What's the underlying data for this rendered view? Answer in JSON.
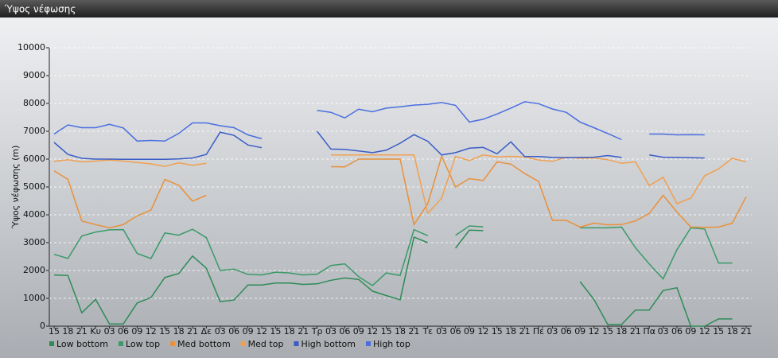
{
  "window_title": "Ύψος νέφωσης",
  "chart_data": {
    "type": "line",
    "y_label": "Ύψος νέφωσης (m)",
    "categories": [
      "15",
      "18",
      "21",
      "Κυ",
      "03",
      "06",
      "09",
      "12",
      "15",
      "18",
      "21",
      "Δε",
      "03",
      "06",
      "09",
      "12",
      "15",
      "18",
      "21",
      "Τρ",
      "03",
      "06",
      "09",
      "12",
      "15",
      "18",
      "21",
      "Τε",
      "03",
      "06",
      "09",
      "12",
      "15",
      "18",
      "21",
      "Πέ",
      "03",
      "06",
      "09",
      "12",
      "15",
      "18",
      "21",
      "Πα",
      "03",
      "06",
      "09",
      "12",
      "15",
      "18",
      "21"
    ],
    "ylim": [
      0,
      10000
    ],
    "yticks": [
      0,
      1000,
      2000,
      3000,
      4000,
      5000,
      6000,
      7000,
      8000,
      9000,
      10000
    ],
    "grid": true,
    "series": [
      {
        "name": "Low bottom",
        "color": "#2e8b57",
        "values": [
          1840,
          1820,
          480,
          960,
          80,
          80,
          830,
          1030,
          1750,
          1890,
          2520,
          2080,
          880,
          940,
          1480,
          1480,
          1550,
          1550,
          1500,
          1520,
          1650,
          1730,
          1680,
          1260,
          1100,
          950,
          3200,
          3000,
          null,
          2800,
          3450,
          3430,
          null,
          null,
          null,
          null,
          null,
          null,
          1600,
          960,
          60,
          60,
          580,
          580,
          1280,
          1380,
          0,
          0,
          260,
          260,
          null
        ]
      },
      {
        "name": "Low top",
        "color": "#3a9a6a",
        "values": [
          2580,
          2430,
          3240,
          3380,
          3460,
          3470,
          2610,
          2430,
          3350,
          3270,
          3480,
          3180,
          2000,
          2050,
          1860,
          1840,
          1940,
          1910,
          1840,
          1870,
          2180,
          2240,
          1780,
          1460,
          1910,
          1820,
          3470,
          3250,
          null,
          3260,
          3600,
          3570,
          null,
          null,
          null,
          null,
          null,
          null,
          3530,
          3530,
          3530,
          3560,
          2820,
          2230,
          1700,
          2750,
          3530,
          3490,
          2270,
          2270,
          null
        ]
      },
      {
        "name": "Med bottom",
        "color": "#e8913a",
        "values": [
          5580,
          5270,
          3780,
          3650,
          3530,
          3650,
          3960,
          4170,
          5270,
          5060,
          4490,
          4700,
          null,
          null,
          null,
          null,
          null,
          null,
          null,
          null,
          5730,
          5720,
          6000,
          6000,
          6000,
          6000,
          3650,
          4400,
          6100,
          5000,
          5300,
          5230,
          5900,
          5820,
          5480,
          5200,
          3800,
          3800,
          3560,
          3700,
          3640,
          3650,
          3780,
          4050,
          4700,
          4100,
          3560,
          3550,
          3560,
          3700,
          4650
        ]
      },
      {
        "name": "Med top",
        "color": "#f0a050",
        "values": [
          5920,
          5980,
          5900,
          5930,
          5970,
          5930,
          5880,
          5830,
          5740,
          5870,
          5780,
          5850,
          null,
          null,
          null,
          null,
          null,
          null,
          null,
          null,
          6150,
          6150,
          6150,
          6150,
          6150,
          6150,
          6150,
          4050,
          4600,
          6100,
          5950,
          6150,
          6080,
          6100,
          6080,
          5970,
          5920,
          6070,
          6030,
          6040,
          5980,
          5850,
          5900,
          5050,
          5350,
          4400,
          4600,
          5400,
          5650,
          6030,
          5900
        ]
      },
      {
        "name": "High bottom",
        "color": "#3a5cc8",
        "values": [
          6600,
          6170,
          6030,
          6000,
          6000,
          5990,
          5990,
          5990,
          5990,
          6010,
          6040,
          6170,
          6970,
          6850,
          6510,
          6410,
          null,
          null,
          null,
          7000,
          6360,
          6350,
          6290,
          6230,
          6320,
          6570,
          6880,
          6640,
          6150,
          6230,
          6390,
          6420,
          6190,
          6620,
          6090,
          6090,
          6060,
          6050,
          6060,
          6070,
          6130,
          6060,
          null,
          6150,
          6070,
          6060,
          6050,
          6040,
          null,
          null,
          null
        ]
      },
      {
        "name": "High top",
        "color": "#4a6ee0",
        "values": [
          6900,
          7230,
          7130,
          7130,
          7250,
          7120,
          6650,
          6670,
          6650,
          6920,
          7300,
          7300,
          7200,
          7130,
          6870,
          6730,
          null,
          null,
          null,
          7750,
          7680,
          7480,
          7790,
          7700,
          7830,
          7880,
          7940,
          7970,
          8030,
          7930,
          7330,
          7430,
          7620,
          7830,
          8060,
          7990,
          7800,
          7680,
          7330,
          7130,
          6920,
          6700,
          null,
          6900,
          6900,
          6870,
          6880,
          6870,
          null,
          null,
          null
        ]
      }
    ]
  }
}
